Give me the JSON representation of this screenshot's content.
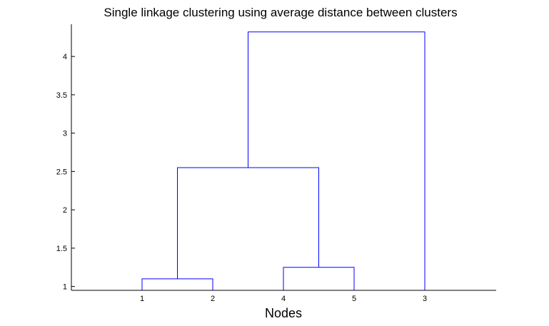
{
  "chart_data": {
    "type": "dendrogram",
    "title": "Single linkage clustering using average distance between clusters",
    "xlabel": "Nodes",
    "ylabel": "",
    "leaf_order": [
      "1",
      "2",
      "4",
      "5",
      "3"
    ],
    "merges": [
      {
        "left": "1",
        "right": "2",
        "height": 1.1
      },
      {
        "left": "4",
        "right": "5",
        "height": 1.25
      },
      {
        "left": "1-2",
        "right": "4-5",
        "height": 2.55
      },
      {
        "left": "1-2-4-5",
        "right": "3",
        "height": 4.32
      }
    ],
    "ylim": [
      0.95,
      4.42
    ],
    "yticks": [
      1,
      1.5,
      2,
      2.5,
      3,
      3.5,
      4
    ],
    "ytick_labels": [
      "1",
      "1.5",
      "2",
      "2.5",
      "3",
      "3.5",
      "4"
    ],
    "grid": false,
    "link_color": "#0000ff",
    "axis_color": "#000000"
  }
}
